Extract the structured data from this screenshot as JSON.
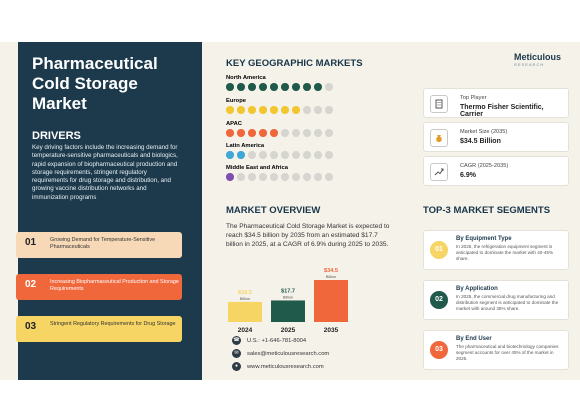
{
  "colors": {
    "navy": "#1c3a4c",
    "orange": "#f0673c",
    "yellow": "#f6d564",
    "green": "#1f5a4a",
    "peach": "#f7d9b7",
    "dot_empty": "#d7d5cf"
  },
  "left": {
    "title": "Pharmaceutical Cold Storage Market",
    "drivers_heading": "DRIVERS",
    "drivers_text": "Key driving factors include the increasing demand for temperature-sensitive pharmaceuticals and biologics, rapid expansion of biopharmaceutical production and storage requirements, stringent regulatory requirements for drug storage and distribution, and growing vaccine distribution networks and immunization programs",
    "drivers": [
      {
        "num": "01",
        "text": "Growing Demand for Temperature-Sensitive Pharmaceuticals"
      },
      {
        "num": "02",
        "text": "Increasing Biopharmaceutical Production and Storage Requirements"
      },
      {
        "num": "03",
        "text": "Stringent Regulatory Requirements for Drug Storage"
      }
    ]
  },
  "geo": {
    "heading": "KEY GEOGRAPHIC MARKETS",
    "regions": [
      {
        "name": "North America",
        "filled": 9,
        "total": 10,
        "color": "#1f5a4a"
      },
      {
        "name": "Europe",
        "filled": 7,
        "total": 10,
        "color": "#f2c62f"
      },
      {
        "name": "APAC",
        "filled": 5,
        "total": 10,
        "color": "#f0673c"
      },
      {
        "name": "Latin America",
        "filled": 2,
        "total": 10,
        "color": "#3fa8d6"
      },
      {
        "name": "Middle East and Africa",
        "filled": 1,
        "total": 10,
        "color": "#7e4fb0"
      }
    ]
  },
  "overview": {
    "heading": "MARKET OVERVIEW",
    "text": "The Pharmaceutical Cold Storage Market is expected to reach $34.5 billion by 2035 from an estimated $17.7 billion in 2025, at a CAGR of 6.9% during 2025 to 2035."
  },
  "chart_data": {
    "type": "bar",
    "categories": [
      "2024",
      "2025",
      "2035"
    ],
    "values": [
      16.5,
      17.7,
      34.5
    ],
    "value_labels": [
      "$16.5",
      "$17.7",
      "$34.5"
    ],
    "unit_label": "Billion",
    "colors": [
      "#f6d564",
      "#1f5a4a",
      "#f0673c"
    ]
  },
  "contacts": [
    {
      "icon": "phone-icon",
      "text": "U.S.: +1-646-781-8004"
    },
    {
      "icon": "email-icon",
      "text": "sales@meticulousresearch.com"
    },
    {
      "icon": "globe-icon",
      "text": "www.meticulousresearch.com"
    }
  ],
  "logo": {
    "name": "Meticulous",
    "sub": "RESEARCH"
  },
  "stats": [
    {
      "icon": "building-icon",
      "label": "Top Player",
      "value": "Thermo Fisher Scientific, Carrier"
    },
    {
      "icon": "money-bag-icon",
      "label": "Market Size (2035)",
      "value": "$34.5 Billion"
    },
    {
      "icon": "growth-chart-icon",
      "label": "CAGR (2025-2035)",
      "value": "6.9%"
    }
  ],
  "segments": {
    "heading": "TOP-3 MARKET SEGMENTS",
    "items": [
      {
        "num": "01",
        "title": "By Equipment Type",
        "text": "In 2025, the refrigeration equipment segment is anticipated to dominate the market with 40-45% share.",
        "color": "#f6d564"
      },
      {
        "num": "02",
        "title": "By Application",
        "text": "In 2025, the commercial drug manufacturing and distribution segment is anticipated to dominate the market with around 35% share.",
        "color": "#1f5a4a"
      },
      {
        "num": "03",
        "title": "By End User",
        "text": "The pharmaceutical and biotechnology companies segment accounts for over 45% of the market in 2025.",
        "color": "#f0673c"
      }
    ]
  }
}
